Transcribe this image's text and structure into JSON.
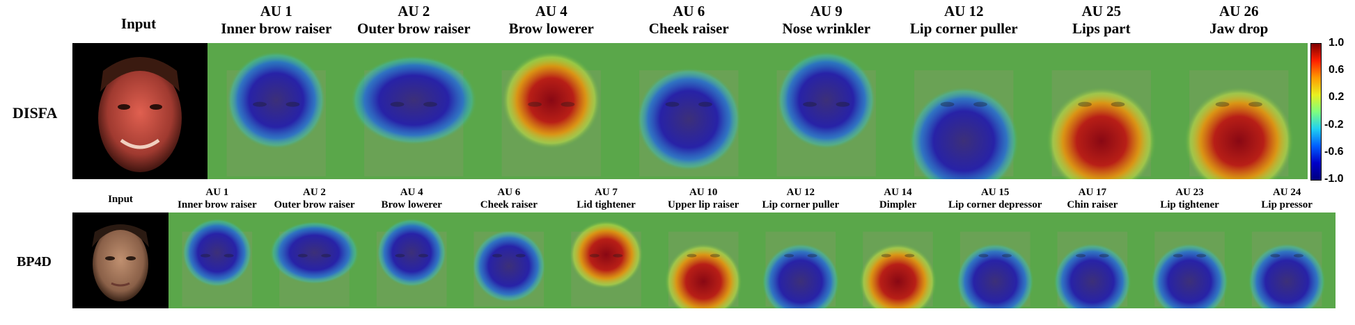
{
  "rows": [
    {
      "label": "DISFA",
      "input_label": "Input",
      "aus": [
        {
          "au": "AU 1",
          "name": "Inner brow raiser",
          "focus": "brow",
          "polarity": "negative"
        },
        {
          "au": "AU 2",
          "name": "Outer brow raiser",
          "focus": "brow-wide",
          "polarity": "negative"
        },
        {
          "au": "AU 4",
          "name": "Brow lowerer",
          "focus": "brow",
          "polarity": "positive"
        },
        {
          "au": "AU 6",
          "name": "Cheek raiser",
          "focus": "cheek",
          "polarity": "negative"
        },
        {
          "au": "AU 9",
          "name": "Nose wrinkler",
          "focus": "brow",
          "polarity": "negative"
        },
        {
          "au": "AU 12",
          "name": "Lip corner puller",
          "focus": "mouth",
          "polarity": "negative"
        },
        {
          "au": "AU 25",
          "name": "Lips part",
          "focus": "mouth",
          "polarity": "positive"
        },
        {
          "au": "AU 26",
          "name": "Jaw drop",
          "focus": "mouth",
          "polarity": "positive"
        }
      ]
    },
    {
      "label": "BP4D",
      "input_label": "Input",
      "aus": [
        {
          "au": "AU 1",
          "name": "Inner brow raiser",
          "focus": "brow",
          "polarity": "negative"
        },
        {
          "au": "AU 2",
          "name": "Outer brow raiser",
          "focus": "brow-wide",
          "polarity": "negative"
        },
        {
          "au": "AU 4",
          "name": "Brow lowerer",
          "focus": "brow",
          "polarity": "negative"
        },
        {
          "au": "AU 6",
          "name": "Cheek raiser",
          "focus": "cheek",
          "polarity": "negative"
        },
        {
          "au": "AU 7",
          "name": "Lid tightener",
          "focus": "eyes",
          "polarity": "positive"
        },
        {
          "au": "AU 10",
          "name": "Upper lip raiser",
          "focus": "mouth",
          "polarity": "positive"
        },
        {
          "au": "AU 12",
          "name": "Lip corner puller",
          "focus": "mouth",
          "polarity": "negative"
        },
        {
          "au": "AU 14",
          "name": "Dimpler",
          "focus": "mouth",
          "polarity": "positive"
        },
        {
          "au": "AU 15",
          "name": "Lip corner depressor",
          "focus": "mouth",
          "polarity": "negative"
        },
        {
          "au": "AU 17",
          "name": "Chin raiser",
          "focus": "mouth",
          "polarity": "negative"
        },
        {
          "au": "AU 23",
          "name": "Lip tightener",
          "focus": "mouth",
          "polarity": "negative"
        },
        {
          "au": "AU 24",
          "name": "Lip pressor",
          "focus": "mouth",
          "polarity": "negative"
        }
      ]
    }
  ],
  "colorbar": {
    "ticks": [
      "1.0",
      "0.6",
      "0.2",
      "-0.2",
      "-0.6",
      "-1.0"
    ],
    "colors": [
      "#7f0000",
      "#ff2000",
      "#ff9a00",
      "#e8f020",
      "#7fff7f",
      "#20d0f0",
      "#0060ff",
      "#0000c8",
      "#00007f"
    ]
  },
  "colors": {
    "background_heat": "#5aa74a",
    "positive": "#b0001a",
    "negative": "#1a14b8"
  }
}
